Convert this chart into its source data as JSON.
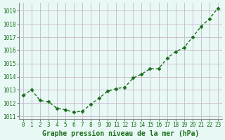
{
  "x": [
    0,
    1,
    2,
    3,
    4,
    5,
    6,
    7,
    8,
    9,
    10,
    11,
    12,
    13,
    14,
    15,
    16,
    17,
    18,
    19,
    20,
    21,
    22,
    23
  ],
  "y": [
    1012.6,
    1013.0,
    1012.2,
    1012.1,
    1011.6,
    1011.5,
    1011.3,
    1011.4,
    1011.9,
    1012.4,
    1012.9,
    1013.1,
    1013.2,
    1013.9,
    1014.2,
    1014.6,
    1014.6,
    1015.4,
    1015.9,
    1016.2,
    1017.0,
    1017.8,
    1018.4,
    1019.2
  ],
  "line_color": "#1a6e1a",
  "marker": "D",
  "marker_size": 2.5,
  "linewidth": 1.0,
  "background_color": "#e8f8f5",
  "grid_color": "#c8b8c8",
  "xlabel": "Graphe pression niveau de la mer (hPa)",
  "xlabel_color": "#1a6e1a",
  "xlabel_fontsize": 7,
  "tick_color": "#1a6e1a",
  "tick_fontsize": 5.5,
  "ylim": [
    1010.8,
    1019.6
  ],
  "xlim": [
    -0.5,
    23.5
  ],
  "yticks": [
    1011,
    1012,
    1013,
    1014,
    1015,
    1016,
    1017,
    1018,
    1019
  ],
  "xticks": [
    0,
    1,
    2,
    3,
    4,
    5,
    6,
    7,
    8,
    9,
    10,
    11,
    12,
    13,
    14,
    15,
    16,
    17,
    18,
    19,
    20,
    21,
    22,
    23
  ],
  "spine_color": "#888888"
}
